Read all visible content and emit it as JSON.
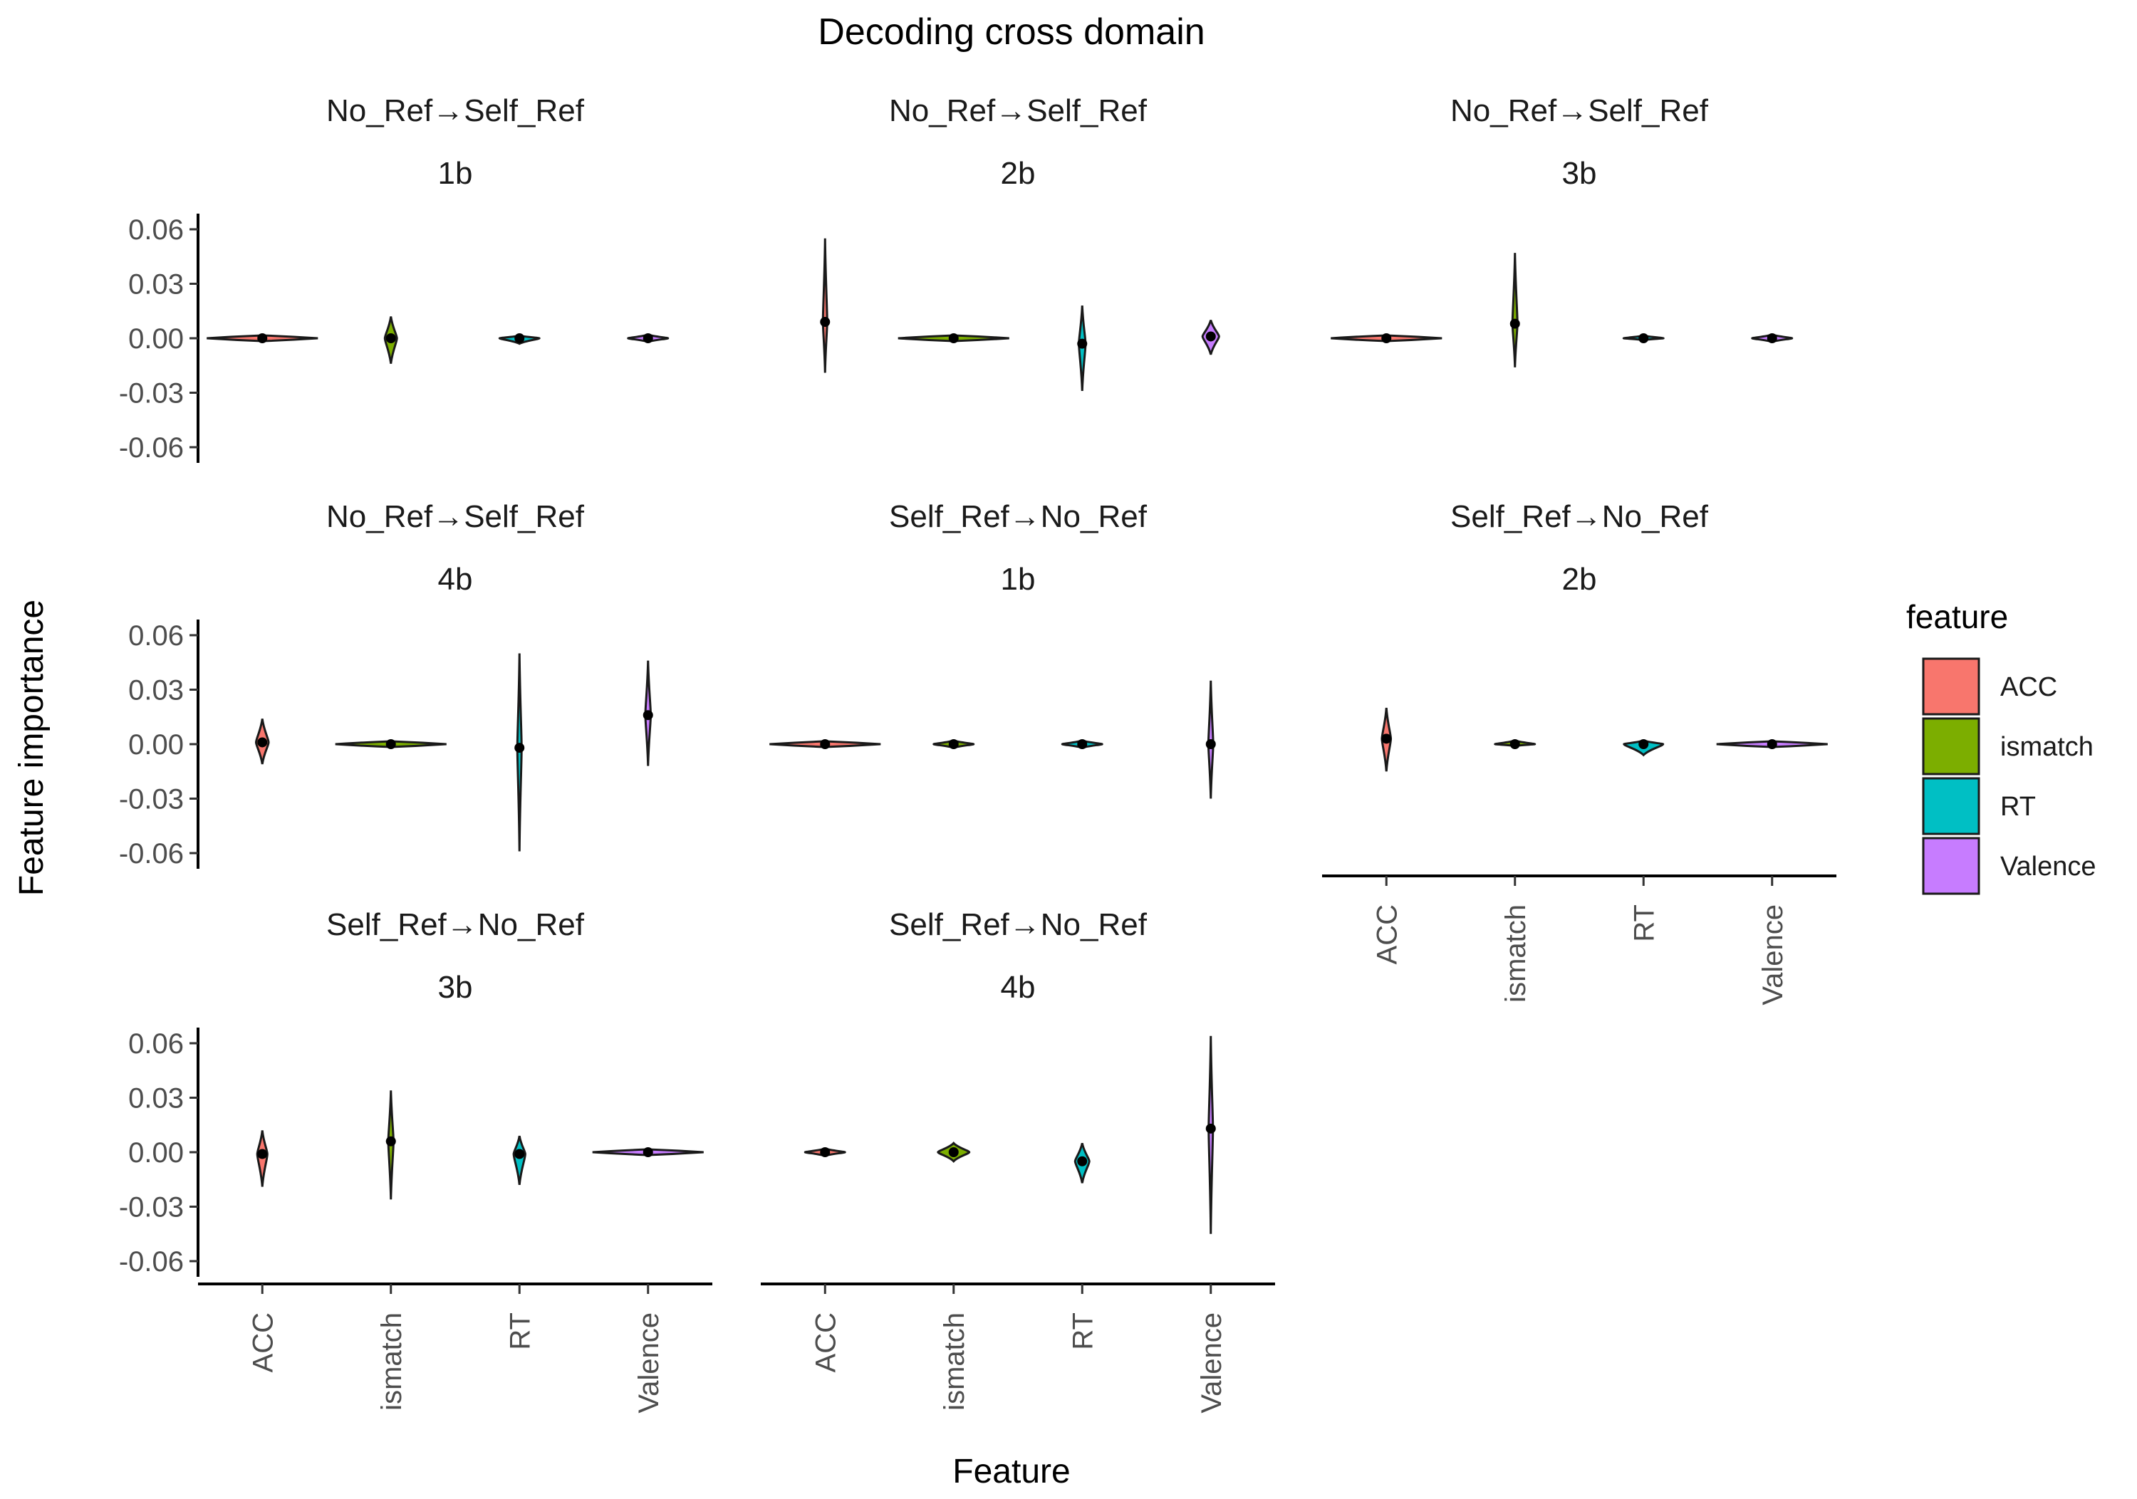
{
  "chart_data": {
    "type": "violin",
    "title": "Decoding cross domain",
    "xlabel": "Feature",
    "ylabel": "Feature importance",
    "ylim": [
      -0.06,
      0.06
    ],
    "yticks": [
      0.06,
      0.03,
      0.0,
      -0.03,
      -0.06
    ],
    "ytick_labels": [
      "0.06",
      "0.03",
      "0.00",
      "-0.03",
      "-0.06"
    ],
    "categories": [
      "ACC",
      "ismatch",
      "RT",
      "Valence"
    ],
    "legend": {
      "title": "feature",
      "position": "right",
      "entries": [
        {
          "label": "ACC",
          "color": "#F8766D"
        },
        {
          "label": "ismatch",
          "color": "#7CAE00"
        },
        {
          "label": "RT",
          "color": "#00BFC4"
        },
        {
          "label": "Valence",
          "color": "#C77CFF"
        }
      ]
    },
    "panels": [
      {
        "direction": "No_Ref→Self_Ref",
        "load": "1b",
        "series": [
          {
            "feature": "ACC",
            "mean": 0.0,
            "min": -0.0005,
            "max": 0.0005
          },
          {
            "feature": "ismatch",
            "mean": 0.0,
            "min": -0.014,
            "max": 0.012
          },
          {
            "feature": "RT",
            "mean": 0.0,
            "min": -0.003,
            "max": 0.0015
          },
          {
            "feature": "Valence",
            "mean": 0.0,
            "min": -0.002,
            "max": 0.002
          }
        ]
      },
      {
        "direction": "No_Ref→Self_Ref",
        "load": "2b",
        "series": [
          {
            "feature": "ACC",
            "mean": 0.009,
            "min": -0.019,
            "max": 0.055
          },
          {
            "feature": "ismatch",
            "mean": 0.0,
            "min": -0.001,
            "max": 0.001
          },
          {
            "feature": "RT",
            "mean": -0.003,
            "min": -0.029,
            "max": 0.018
          },
          {
            "feature": "Valence",
            "mean": 0.001,
            "min": -0.009,
            "max": 0.01
          }
        ]
      },
      {
        "direction": "No_Ref→Self_Ref",
        "load": "3b",
        "series": [
          {
            "feature": "ACC",
            "mean": 0.0,
            "min": -0.001,
            "max": 0.001
          },
          {
            "feature": "ismatch",
            "mean": 0.008,
            "min": -0.016,
            "max": 0.047
          },
          {
            "feature": "RT",
            "mean": 0.0,
            "min": -0.001,
            "max": 0.0015
          },
          {
            "feature": "Valence",
            "mean": 0.0,
            "min": -0.002,
            "max": 0.002
          }
        ]
      },
      {
        "direction": "No_Ref→Self_Ref",
        "load": "4b",
        "series": [
          {
            "feature": "ACC",
            "mean": 0.001,
            "min": -0.011,
            "max": 0.014
          },
          {
            "feature": "ismatch",
            "mean": 0.0,
            "min": -0.001,
            "max": 0.001
          },
          {
            "feature": "RT",
            "mean": -0.002,
            "min": -0.059,
            "max": 0.05
          },
          {
            "feature": "Valence",
            "mean": 0.016,
            "min": -0.012,
            "max": 0.046
          }
        ]
      },
      {
        "direction": "Self_Ref→No_Ref",
        "load": "1b",
        "series": [
          {
            "feature": "ACC",
            "mean": 0.0,
            "min": -0.0005,
            "max": 0.0005
          },
          {
            "feature": "ismatch",
            "mean": 0.0,
            "min": -0.002,
            "max": 0.002
          },
          {
            "feature": "RT",
            "mean": 0.0,
            "min": -0.002,
            "max": 0.002
          },
          {
            "feature": "Valence",
            "mean": 0.0,
            "min": -0.03,
            "max": 0.035
          }
        ]
      },
      {
        "direction": "Self_Ref→No_Ref",
        "load": "2b",
        "series": [
          {
            "feature": "ACC",
            "mean": 0.003,
            "min": -0.015,
            "max": 0.02
          },
          {
            "feature": "ismatch",
            "mean": 0.0,
            "min": -0.001,
            "max": 0.002
          },
          {
            "feature": "RT",
            "mean": 0.0,
            "min": -0.006,
            "max": 0.002
          },
          {
            "feature": "Valence",
            "mean": 0.0,
            "min": -0.001,
            "max": 0.001
          }
        ]
      },
      {
        "direction": "Self_Ref→No_Ref",
        "load": "3b",
        "series": [
          {
            "feature": "ACC",
            "mean": -0.001,
            "min": -0.019,
            "max": 0.012
          },
          {
            "feature": "ismatch",
            "mean": 0.006,
            "min": -0.026,
            "max": 0.034
          },
          {
            "feature": "RT",
            "mean": -0.001,
            "min": -0.018,
            "max": 0.009
          },
          {
            "feature": "Valence",
            "mean": 0.0,
            "min": -0.001,
            "max": 0.001
          }
        ]
      },
      {
        "direction": "Self_Ref→No_Ref",
        "load": "4b",
        "series": [
          {
            "feature": "ACC",
            "mean": 0.0,
            "min": -0.002,
            "max": 0.002
          },
          {
            "feature": "ismatch",
            "mean": 0.0,
            "min": -0.005,
            "max": 0.005
          },
          {
            "feature": "RT",
            "mean": -0.005,
            "min": -0.017,
            "max": 0.005
          },
          {
            "feature": "Valence",
            "mean": 0.013,
            "min": -0.045,
            "max": 0.064
          }
        ]
      }
    ]
  }
}
